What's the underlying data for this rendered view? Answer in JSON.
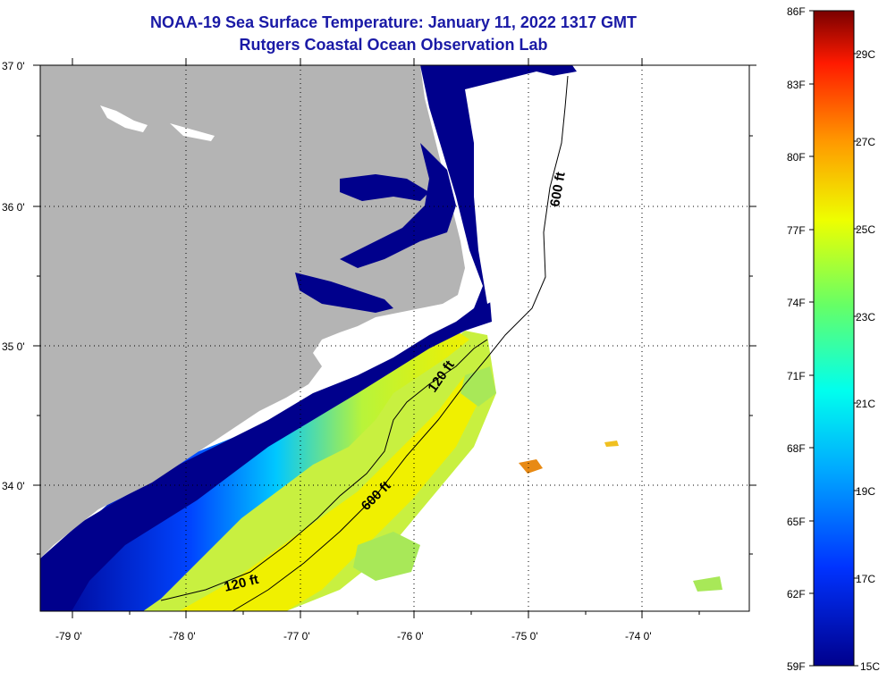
{
  "header": {
    "title": "NOAA-19 Sea Surface Temperature:  January 11, 2022 1317 GMT",
    "subtitle": "Rutgers Coastal Ocean Observation Lab"
  },
  "axes": {
    "latitude_labels": [
      "37 0'",
      "36 0'",
      "35 0'",
      "34 0'"
    ],
    "longitude_labels": [
      "-79 0'",
      "-78 0'",
      "-77 0'",
      "-76 0'",
      "-75 0'",
      "-74 0'"
    ]
  },
  "contours": {
    "label_120_south": "120 ft",
    "label_120_north": "120 ft",
    "label_600_south": "600 ft",
    "label_600_north": "600 ft"
  },
  "colorbar": {
    "fahrenheit": [
      "86F",
      "83F",
      "80F",
      "77F",
      "74F",
      "71F",
      "68F",
      "65F",
      "62F",
      "59F"
    ],
    "celsius": [
      "29C",
      "27C",
      "25C",
      "23C",
      "21C",
      "19C",
      "17C",
      "15C"
    ],
    "range_c": [
      15,
      30
    ]
  },
  "colors": {
    "land": "#b4b4b4",
    "ocean_cold": "#00008c",
    "title": "#1a1aa6"
  }
}
